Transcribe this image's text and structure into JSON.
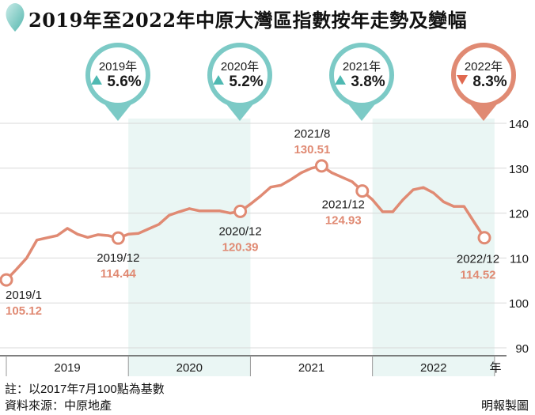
{
  "title": "2019年至2022年中原大灣區指數按年走勢及變幅",
  "footnote": "註：以2017年7月100點為基數",
  "source": "資料來源：中原地產",
  "credit": "明報製圖",
  "colors": {
    "line": "#e08a73",
    "teal": "#7ccac6",
    "shade": "#eaf6f4",
    "up": "#4fb9b2",
    "down": "#e0684f",
    "axis": "#555555",
    "grid": "#d8d8d8"
  },
  "chart_data": {
    "type": "line",
    "ylim": [
      90,
      145
    ],
    "yticks": [
      90,
      100,
      110,
      120,
      130,
      140
    ],
    "xlabel": "年",
    "year_labels": [
      "2019",
      "2020",
      "2021",
      "2022"
    ],
    "shaded_years": [
      "2020",
      "2022"
    ],
    "series": [
      {
        "values": [
          105.12,
          107.5,
          110.0,
          114.0,
          114.5,
          115.0,
          116.6,
          115.3,
          114.6,
          115.2,
          115.0,
          114.44,
          115.3,
          115.5,
          116.5,
          117.5,
          119.5,
          120.3,
          121.0,
          120.5,
          120.5,
          120.5,
          120.0,
          120.39,
          122.0,
          123.8,
          125.8,
          126.2,
          127.5,
          129.0,
          130.0,
          130.51,
          129.0,
          128.0,
          127.0,
          124.93,
          123.0,
          120.3,
          120.3,
          123.0,
          125.2,
          125.7,
          124.5,
          122.5,
          121.5,
          121.5,
          118.0,
          114.52
        ]
      }
    ],
    "annotations": [
      {
        "index": 0,
        "date": "2019/1",
        "value": "105.12"
      },
      {
        "index": 11,
        "date": "2019/12",
        "value": "114.44"
      },
      {
        "index": 23,
        "date": "2020/12",
        "value": "120.39"
      },
      {
        "index": 31,
        "date": "2021/8",
        "value": "130.51"
      },
      {
        "index": 35,
        "date": "2021/12",
        "value": "124.93"
      },
      {
        "index": 47,
        "date": "2022/12",
        "value": "114.52"
      }
    ],
    "yearly_change": [
      {
        "year": "2019年",
        "direction": "up",
        "change": "5.6%"
      },
      {
        "year": "2020年",
        "direction": "up",
        "change": "5.2%"
      },
      {
        "year": "2021年",
        "direction": "up",
        "change": "3.8%"
      },
      {
        "year": "2022年",
        "direction": "down",
        "change": "8.3%"
      }
    ]
  }
}
